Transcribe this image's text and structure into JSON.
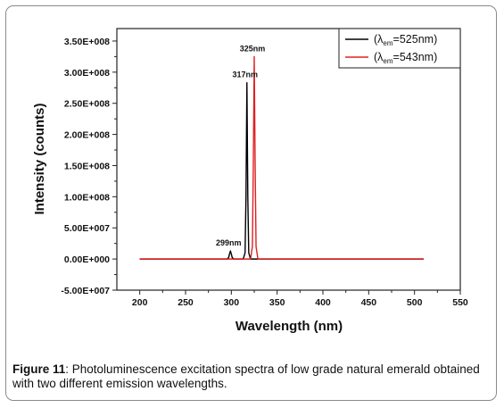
{
  "chart_data": {
    "type": "line",
    "title": "",
    "xlabel": "Wavelength (nm)",
    "ylabel": "Intensity (counts)",
    "xlim": [
      175,
      550
    ],
    "ylim": [
      -50000000,
      370000000
    ],
    "x_ticks": [
      "200",
      "250",
      "300",
      "350",
      "400",
      "450",
      "500",
      "550"
    ],
    "y_ticks": [
      "-5.00E+007",
      "0.00E+000",
      "5.00E+007",
      "1.00E+008",
      "1.50E+008",
      "2.00E+008",
      "2.50E+008",
      "3.00E+008",
      "3.50E+008"
    ],
    "y_tick_values": [
      -50000000,
      0,
      50000000,
      100000000,
      150000000,
      200000000,
      250000000,
      300000000,
      350000000
    ],
    "x_tick_values": [
      200,
      250,
      300,
      350,
      400,
      450,
      500,
      550
    ],
    "legend_position": "top-right",
    "grid": false,
    "series": [
      {
        "name_prefix": "(λ",
        "name_sub": "em",
        "name_suffix": "=525nm)",
        "color": "#000000",
        "x": [
          200,
          295,
          297,
          298,
          299,
          300,
          301,
          303,
          313,
          315,
          316,
          317,
          318,
          319,
          321,
          510
        ],
        "y": [
          0,
          0,
          2000000,
          8000000,
          13000000,
          8000000,
          2000000,
          0,
          0,
          10000000,
          100000000,
          283000000,
          100000000,
          10000000,
          0,
          0
        ]
      },
      {
        "name_prefix": "(λ",
        "name_sub": "em",
        "name_suffix": "=543nm)",
        "color": "#e02020",
        "x": [
          200,
          321,
          323,
          324,
          325,
          326,
          327,
          329,
          510
        ],
        "y": [
          0,
          0,
          20000000,
          150000000,
          325000000,
          150000000,
          20000000,
          0,
          0
        ]
      }
    ],
    "annotations": [
      {
        "text": "325nm",
        "x": 325,
        "y": 325000000
      },
      {
        "text": "317nm",
        "x": 317,
        "y": 283000000
      },
      {
        "text": "299nm",
        "x": 299,
        "y": 13000000
      }
    ]
  },
  "caption": {
    "label": "Figure 11",
    "text": ": Photoluminescence excitation spectra of low grade natural emerald obtained with two   different emission wavelengths."
  },
  "colors": {
    "frame": "#8a8a8a",
    "series1": "#000000",
    "series2": "#e02020"
  }
}
